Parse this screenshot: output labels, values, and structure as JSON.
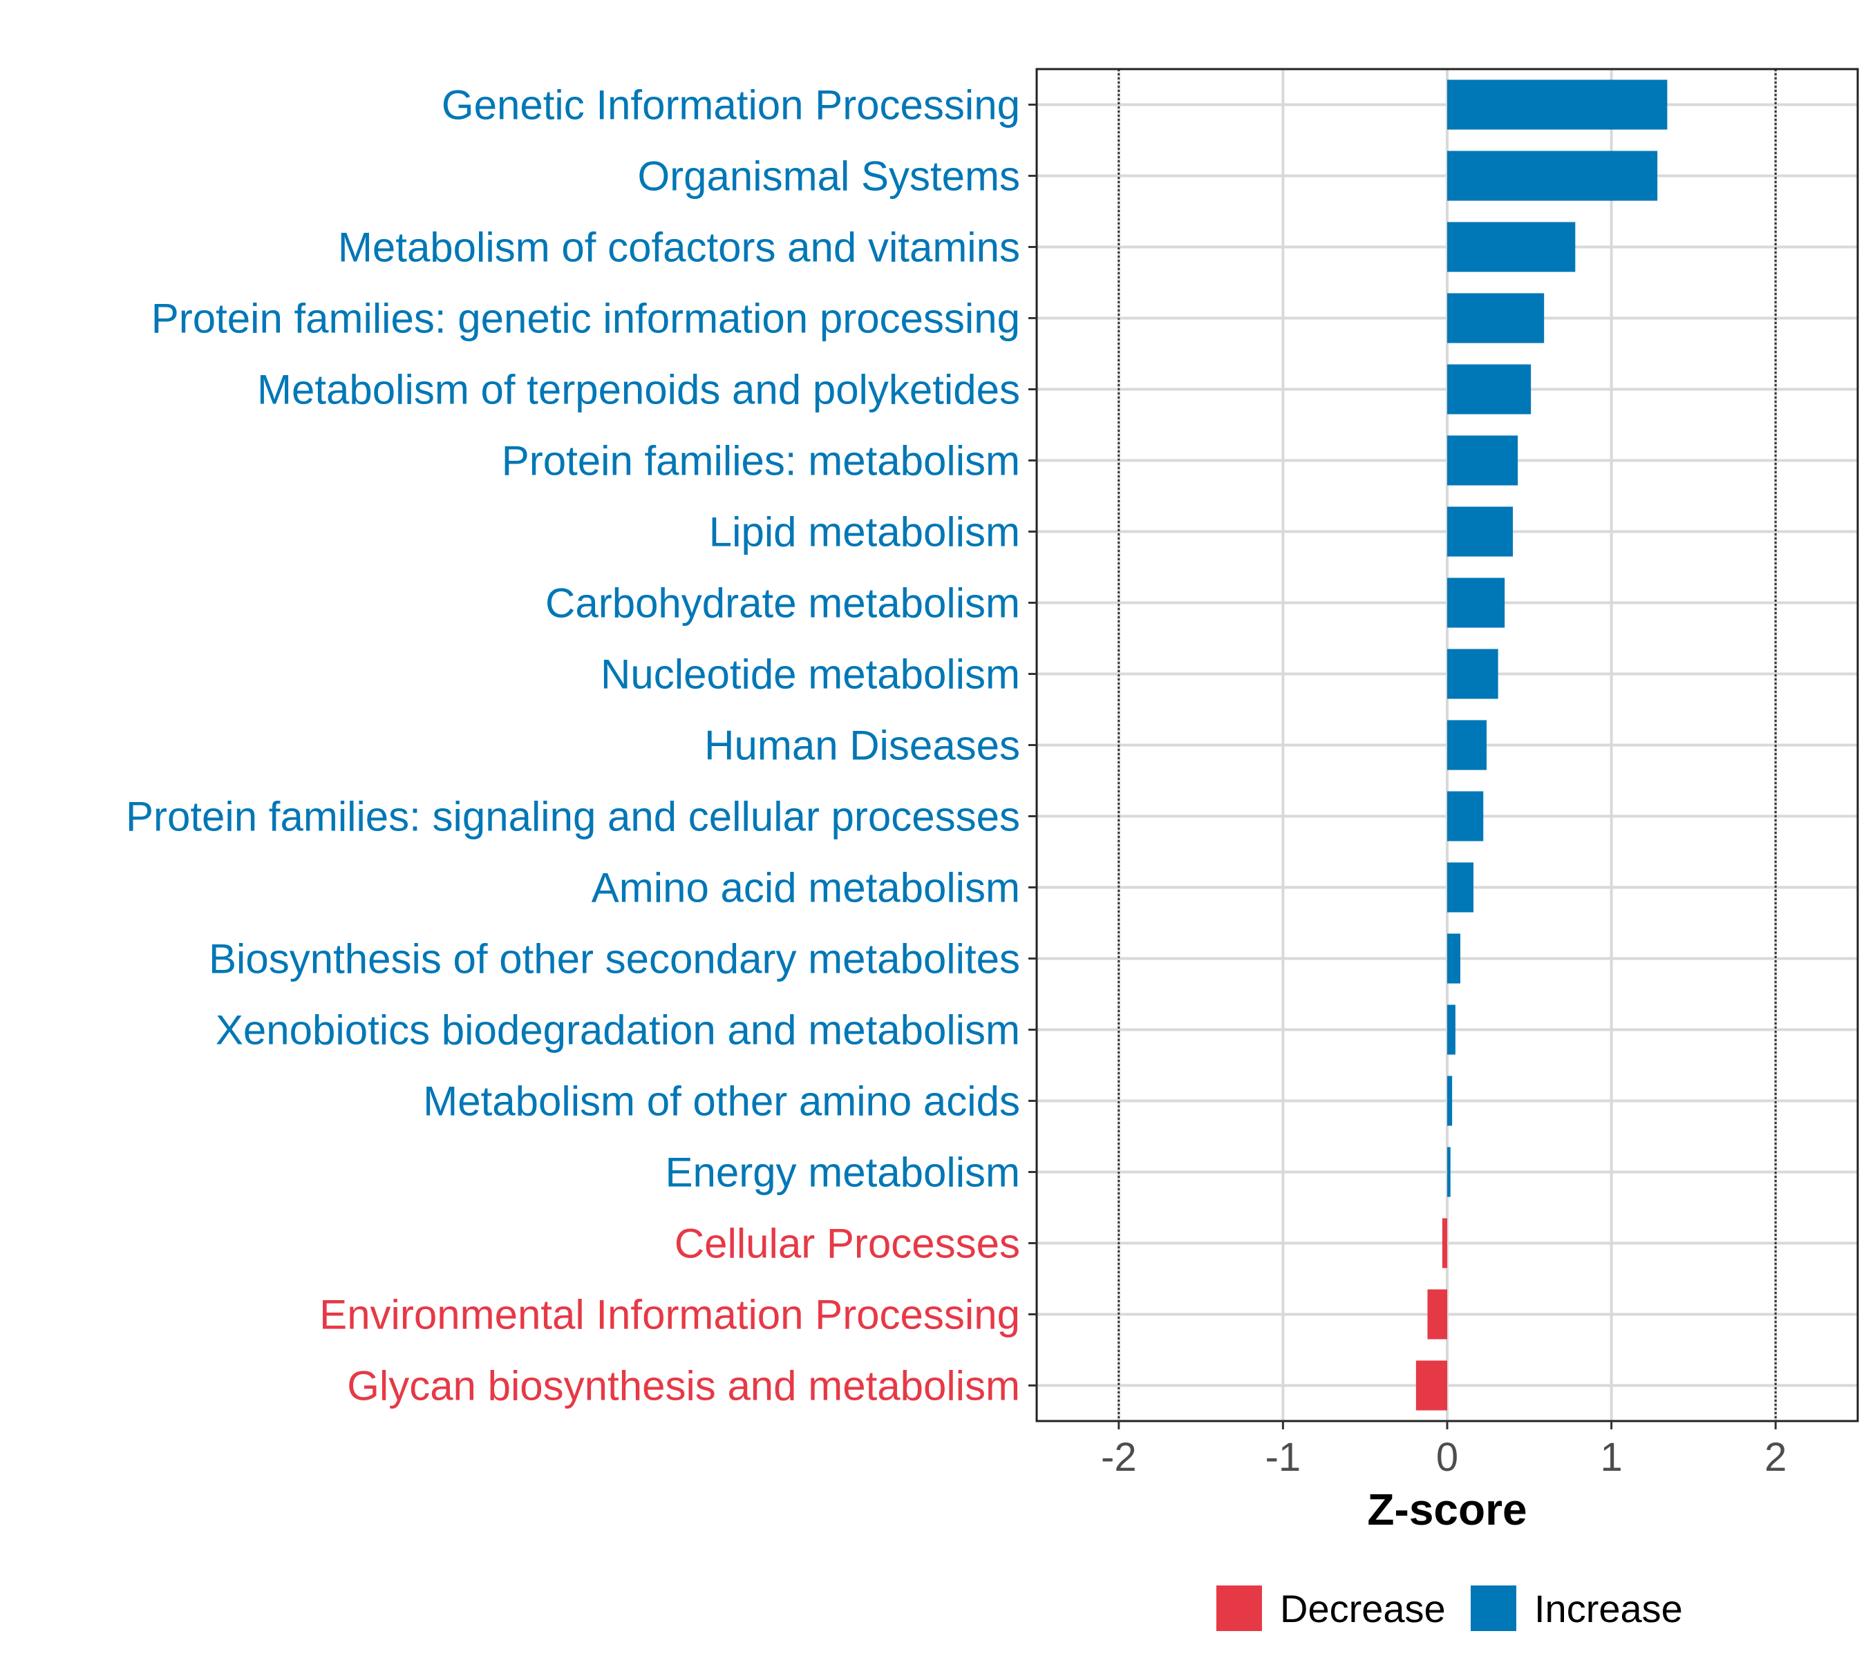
{
  "chart_data": {
    "type": "bar",
    "orientation": "horizontal",
    "title": "",
    "xlabel": "Z-score",
    "ylabel": "",
    "xlim": [
      -2.5,
      2.5
    ],
    "xticks": [
      -2,
      -1,
      0,
      1,
      2
    ],
    "xtick_labels": [
      "-2",
      "-1",
      "0",
      "1",
      "2"
    ],
    "reference_lines": [
      -2,
      2
    ],
    "grid": true,
    "legend_position": "bottom",
    "colors": {
      "Decrease": "#e63946",
      "Increase": "#0077b6"
    },
    "legend": [
      {
        "label": "Decrease",
        "color": "#e63946"
      },
      {
        "label": "Increase",
        "color": "#0077b6"
      }
    ],
    "categories": [
      "Genetic Information Processing",
      "Organismal Systems",
      "Metabolism of cofactors and vitamins",
      "Protein families: genetic information processing",
      "Metabolism of terpenoids and polyketides",
      "Protein families: metabolism",
      "Lipid metabolism",
      "Carbohydrate metabolism",
      "Nucleotide metabolism",
      "Human Diseases",
      "Protein families: signaling and cellular processes",
      "Amino acid metabolism",
      "Biosynthesis of other secondary metabolites",
      "Xenobiotics biodegradation and metabolism",
      "Metabolism of other amino acids",
      "Energy metabolism",
      "Cellular Processes",
      "Environmental Information Processing",
      "Glycan biosynthesis and metabolism"
    ],
    "values": [
      1.34,
      1.28,
      0.78,
      0.59,
      0.51,
      0.43,
      0.4,
      0.35,
      0.31,
      0.24,
      0.22,
      0.16,
      0.08,
      0.05,
      0.03,
      0.02,
      -0.03,
      -0.12,
      -0.19
    ],
    "groups": [
      "Increase",
      "Increase",
      "Increase",
      "Increase",
      "Increase",
      "Increase",
      "Increase",
      "Increase",
      "Increase",
      "Increase",
      "Increase",
      "Increase",
      "Increase",
      "Increase",
      "Increase",
      "Increase",
      "Decrease",
      "Decrease",
      "Decrease"
    ]
  }
}
